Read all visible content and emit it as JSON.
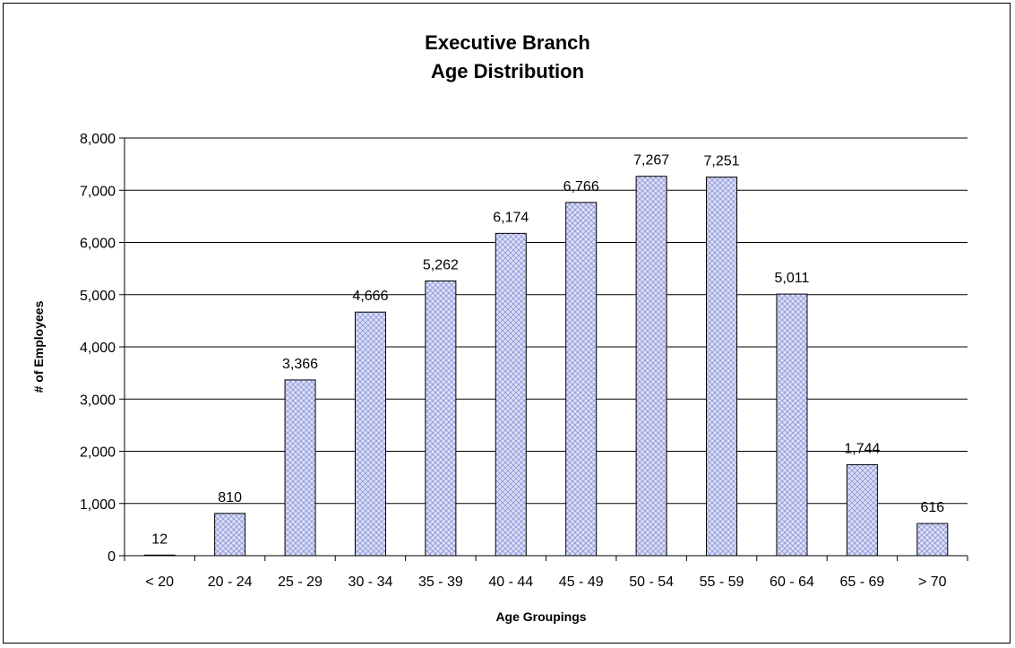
{
  "chart_data": {
    "type": "bar",
    "title_lines": [
      "Executive Branch",
      "Age Distribution"
    ],
    "xlabel": "Age Groupings",
    "ylabel": "# of Employees",
    "categories": [
      "< 20",
      "20 - 24",
      "25 - 29",
      "30 - 34",
      "35 - 39",
      "40 - 44",
      "45 - 49",
      "50 - 54",
      "55 - 59",
      "60 - 64",
      "65 - 69",
      "> 70"
    ],
    "values": [
      12,
      810,
      3366,
      4666,
      5262,
      6174,
      6766,
      7267,
      7251,
      5011,
      1744,
      616
    ],
    "data_labels": [
      "12",
      "810",
      "3,366",
      "4,666",
      "5,262",
      "6,174",
      "6,766",
      "7,267",
      "7,251",
      "5,011",
      "1,744",
      "616"
    ],
    "yticks": [
      "0",
      "1,000",
      "2,000",
      "3,000",
      "4,000",
      "5,000",
      "6,000",
      "7,000",
      "8,000"
    ],
    "ylim": [
      0,
      8000
    ],
    "grid": true,
    "legend": "none",
    "bar_fill": "#c9cdf2",
    "bar_pattern": "crosshatch"
  }
}
